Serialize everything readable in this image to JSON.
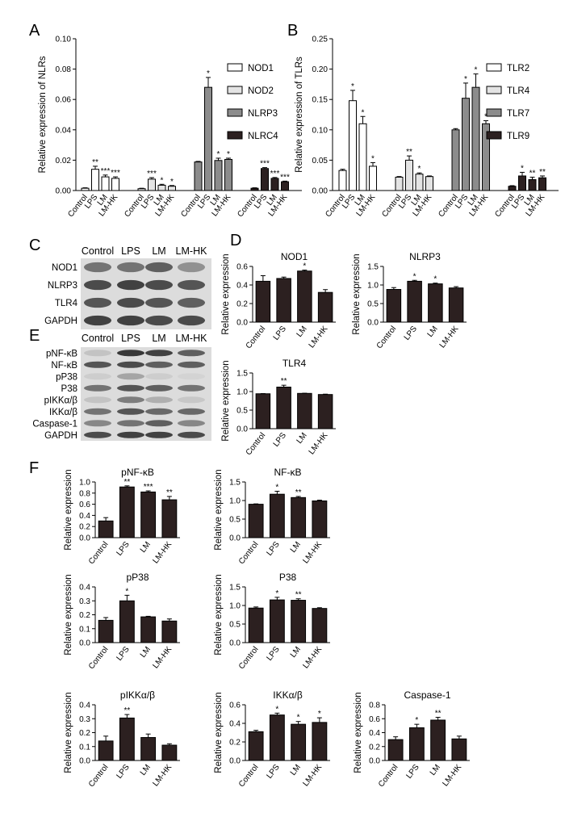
{
  "panel_letters": [
    "A",
    "B",
    "C",
    "D",
    "E",
    "F"
  ],
  "colors": {
    "NOD1": "#ffffff",
    "NOD2": "#e4e4e4",
    "NLRP3": "#8c8c8c",
    "NLRC4": "#2c2020",
    "TLR2": "#ffffff",
    "TLR4": "#e4e4e4",
    "TLR7": "#8c8c8c",
    "TLR9": "#2c2020",
    "bar": "#2c2020"
  },
  "blot_c": {
    "columns": [
      "Control",
      "LPS",
      "LM",
      "LM-HK"
    ],
    "rows": [
      "NOD1",
      "NLRP3",
      "TLR4",
      "GAPDH"
    ]
  },
  "blot_e": {
    "columns": [
      "Control",
      "LPS",
      "LM",
      "LM-HK"
    ],
    "rows": [
      "pNF-κB",
      "NF-κB",
      "pP38",
      "P38",
      "pIKKα/β",
      "IKKα/β",
      "Caspase-1",
      "GAPDH"
    ]
  },
  "chart_data": [
    {
      "id": "A",
      "type": "bar",
      "ylabel": "Relative expression of NLRs",
      "ylim": [
        0,
        0.1
      ],
      "yticks": [
        "0.00",
        "0.02",
        "0.04",
        "0.06",
        "0.08",
        "0.10"
      ],
      "ytick_values": [
        0,
        0.02,
        0.04,
        0.06,
        0.08,
        0.1
      ],
      "categories": [
        "Control",
        "LPS",
        "LM",
        "LM-HK"
      ],
      "legend": "right",
      "series": [
        {
          "name": "NOD1",
          "values": [
            0.0015,
            0.014,
            0.009,
            0.008
          ],
          "errors": [
            0.0003,
            0.002,
            0.0012,
            0.001
          ],
          "stars": [
            "",
            "**",
            "***",
            "***"
          ]
        },
        {
          "name": "NOD2",
          "values": [
            0.0012,
            0.0075,
            0.0035,
            0.0028
          ],
          "errors": [
            0.0003,
            0.001,
            0.0006,
            0.0005
          ],
          "stars": [
            "",
            "***",
            "*",
            "*"
          ]
        },
        {
          "name": "NLRP3",
          "values": [
            0.0188,
            0.068,
            0.0198,
            0.0205
          ],
          "errors": [
            0.0004,
            0.0065,
            0.0015,
            0.0008
          ],
          "stars": [
            "",
            "*",
            "*",
            "*"
          ]
        },
        {
          "name": "NLRC4",
          "values": [
            0.0015,
            0.0145,
            0.008,
            0.0058
          ],
          "errors": [
            0.0003,
            0.0006,
            0.0006,
            0.0004
          ],
          "stars": [
            "",
            "***",
            "***",
            "***"
          ]
        }
      ]
    },
    {
      "id": "B",
      "type": "bar",
      "ylabel": "Relative expression of TLRs",
      "ylim": [
        0,
        0.25
      ],
      "yticks": [
        "0.00",
        "0.05",
        "0.10",
        "0.15",
        "0.20",
        "0.25"
      ],
      "ytick_values": [
        0,
        0.05,
        0.1,
        0.15,
        0.2,
        0.25
      ],
      "categories": [
        "Control",
        "LPS",
        "LM",
        "LM-HK"
      ],
      "legend": "right",
      "series": [
        {
          "name": "TLR2",
          "values": [
            0.033,
            0.148,
            0.11,
            0.04
          ],
          "errors": [
            0.002,
            0.017,
            0.012,
            0.006
          ],
          "stars": [
            "",
            "*",
            "*",
            "*"
          ]
        },
        {
          "name": "TLR4",
          "values": [
            0.022,
            0.05,
            0.027,
            0.023
          ],
          "errors": [
            0.001,
            0.007,
            0.002,
            0.001
          ],
          "stars": [
            "",
            "**",
            "*",
            ""
          ]
        },
        {
          "name": "TLR7",
          "values": [
            0.1,
            0.152,
            0.17,
            0.11
          ],
          "errors": [
            0.002,
            0.025,
            0.022,
            0.005
          ],
          "stars": [
            "",
            "*",
            "*",
            "*"
          ]
        },
        {
          "name": "TLR9",
          "values": [
            0.007,
            0.024,
            0.018,
            0.021
          ],
          "errors": [
            0.001,
            0.006,
            0.004,
            0.003
          ],
          "stars": [
            "",
            "*",
            "**",
            "**"
          ]
        }
      ]
    },
    {
      "id": "D-NOD1",
      "type": "bar",
      "title": "NOD1",
      "ylabel": "Relative expression",
      "ylim": [
        0,
        0.6
      ],
      "yticks": [
        "0.0",
        "0.2",
        "0.4",
        "0.6"
      ],
      "ytick_values": [
        0,
        0.2,
        0.4,
        0.6
      ],
      "categories": [
        "Control",
        "LPS",
        "LM",
        "LM-HK"
      ],
      "values": [
        0.44,
        0.47,
        0.55,
        0.32
      ],
      "errors": [
        0.06,
        0.015,
        0.01,
        0.03
      ],
      "stars": [
        "",
        "",
        "*",
        ""
      ]
    },
    {
      "id": "D-NLRP3",
      "type": "bar",
      "title": "NLRP3",
      "ylabel": "Relative expression",
      "ylim": [
        0,
        1.5
      ],
      "yticks": [
        "0.0",
        "0.5",
        "1.0",
        "1.5"
      ],
      "ytick_values": [
        0,
        0.5,
        1,
        1.5
      ],
      "categories": [
        "Control",
        "LPS",
        "LM",
        "LM-HK"
      ],
      "values": [
        0.88,
        1.1,
        1.03,
        0.92
      ],
      "errors": [
        0.05,
        0.025,
        0.02,
        0.035
      ],
      "stars": [
        "",
        "*",
        "*",
        ""
      ]
    },
    {
      "id": "D-TLR4",
      "type": "bar",
      "title": "TLR4",
      "ylabel": "Relative expression",
      "ylim": [
        0,
        1.5
      ],
      "yticks": [
        "0.0",
        "0.5",
        "1.0",
        "1.5"
      ],
      "ytick_values": [
        0,
        0.5,
        1,
        1.5
      ],
      "categories": [
        "Control",
        "LPS",
        "LM",
        "LM-HK"
      ],
      "values": [
        0.94,
        1.12,
        0.95,
        0.92
      ],
      "errors": [
        0.005,
        0.05,
        0.005,
        0.01
      ],
      "stars": [
        "",
        "**",
        "",
        ""
      ]
    },
    {
      "id": "F-pNFkB",
      "type": "bar",
      "title": "pNF-κB",
      "ylabel": "Relative expression",
      "ylim": [
        0,
        1.0
      ],
      "yticks": [
        "0.0",
        "0.2",
        "0.4",
        "0.6",
        "0.8",
        "1.0"
      ],
      "ytick_values": [
        0,
        0.2,
        0.4,
        0.6,
        0.8,
        1
      ],
      "categories": [
        "Control",
        "LPS",
        "LM",
        "LM-HK"
      ],
      "values": [
        0.3,
        0.91,
        0.82,
        0.68
      ],
      "errors": [
        0.06,
        0.02,
        0.02,
        0.06
      ],
      "stars": [
        "",
        "**",
        "***",
        "**"
      ]
    },
    {
      "id": "F-NFkB",
      "type": "bar",
      "title": "NF-κB",
      "ylabel": "Relative expression",
      "ylim": [
        0,
        1.5
      ],
      "yticks": [
        "0.0",
        "0.5",
        "1.0",
        "1.5"
      ],
      "ytick_values": [
        0,
        0.5,
        1,
        1.5
      ],
      "categories": [
        "Control",
        "LPS",
        "LM",
        "LM-HK"
      ],
      "values": [
        0.9,
        1.17,
        1.08,
        0.99
      ],
      "errors": [
        0.01,
        0.08,
        0.03,
        0.02
      ],
      "stars": [
        "",
        "*",
        "**",
        ""
      ]
    },
    {
      "id": "F-pP38",
      "type": "bar",
      "title": "pP38",
      "ylabel": "Relative expression",
      "ylim": [
        0,
        0.4
      ],
      "yticks": [
        "0.0",
        "0.1",
        "0.2",
        "0.3",
        "0.4"
      ],
      "ytick_values": [
        0,
        0.1,
        0.2,
        0.3,
        0.4
      ],
      "categories": [
        "Control",
        "LPS",
        "LM",
        "LM-HK"
      ],
      "values": [
        0.16,
        0.3,
        0.185,
        0.155
      ],
      "errors": [
        0.02,
        0.04,
        0.004,
        0.015
      ],
      "stars": [
        "",
        "*",
        "",
        ""
      ]
    },
    {
      "id": "F-P38",
      "type": "bar",
      "title": "P38",
      "ylabel": "Relative expression",
      "ylim": [
        0,
        1.5
      ],
      "yticks": [
        "0.0",
        "0.5",
        "1.0",
        "1.5"
      ],
      "ytick_values": [
        0,
        0.5,
        1,
        1.5
      ],
      "categories": [
        "Control",
        "LPS",
        "LM",
        "LM-HK"
      ],
      "values": [
        0.93,
        1.15,
        1.14,
        0.92
      ],
      "errors": [
        0.03,
        0.07,
        0.04,
        0.02
      ],
      "stars": [
        "",
        "*",
        "**",
        ""
      ]
    },
    {
      "id": "F-pIKK",
      "type": "bar",
      "title": "pIKKα/β",
      "ylabel": "Relative expression",
      "ylim": [
        0,
        0.4
      ],
      "yticks": [
        "0.0",
        "0.1",
        "0.2",
        "0.3",
        "0.4"
      ],
      "ytick_values": [
        0,
        0.1,
        0.2,
        0.3,
        0.4
      ],
      "categories": [
        "Control",
        "LPS",
        "LM",
        "LM-HK"
      ],
      "values": [
        0.14,
        0.305,
        0.165,
        0.11
      ],
      "errors": [
        0.035,
        0.025,
        0.025,
        0.01
      ],
      "stars": [
        "",
        "**",
        "",
        ""
      ]
    },
    {
      "id": "F-IKK",
      "type": "bar",
      "title": "IKKα/β",
      "ylabel": "Relative expression",
      "ylim": [
        0,
        0.6
      ],
      "yticks": [
        "0.0",
        "0.2",
        "0.4",
        "0.6"
      ],
      "ytick_values": [
        0,
        0.2,
        0.4,
        0.6
      ],
      "categories": [
        "Control",
        "LPS",
        "LM",
        "LM-HK"
      ],
      "values": [
        0.31,
        0.49,
        0.39,
        0.41
      ],
      "errors": [
        0.015,
        0.02,
        0.03,
        0.05
      ],
      "stars": [
        "",
        "*",
        "*",
        "*"
      ]
    },
    {
      "id": "F-Casp1",
      "type": "bar",
      "title": "Caspase-1",
      "ylabel": "Relative expression",
      "ylim": [
        0,
        0.8
      ],
      "yticks": [
        "0.0",
        "0.2",
        "0.4",
        "0.6",
        "0.8"
      ],
      "ytick_values": [
        0,
        0.2,
        0.4,
        0.6,
        0.8
      ],
      "categories": [
        "Control",
        "LPS",
        "LM",
        "LM-HK"
      ],
      "values": [
        0.3,
        0.47,
        0.58,
        0.31
      ],
      "errors": [
        0.04,
        0.05,
        0.04,
        0.04
      ],
      "stars": [
        "",
        "*",
        "**",
        ""
      ]
    }
  ]
}
